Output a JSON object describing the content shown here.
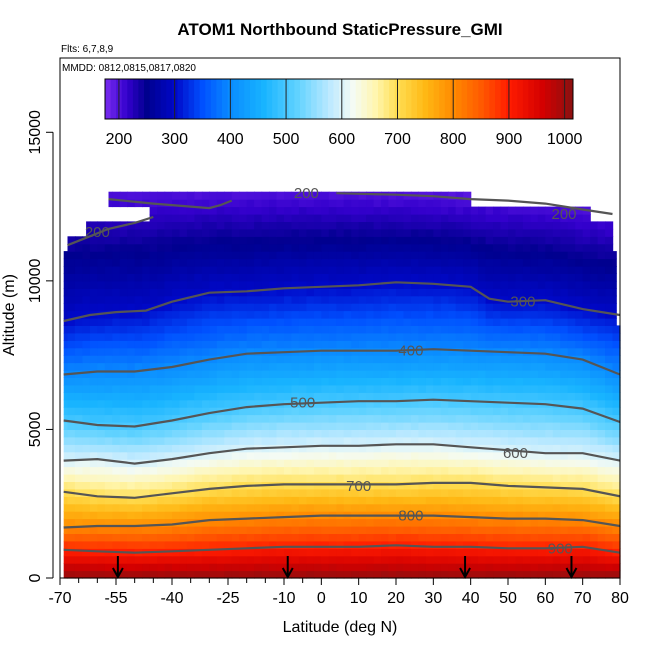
{
  "chart_data": {
    "type": "heatmap",
    "title": "ATOM1 Northbound StaticPressure_GMI",
    "annotations": [
      "Flts: 6,7,8,9",
      "MMDD: 0812,0815,0817,0820"
    ],
    "xlabel": "Latitude (deg N)",
    "ylabel": "Altitude (m)",
    "xlim": [
      -70,
      80
    ],
    "ylim": [
      0,
      17500
    ],
    "x_ticks": [
      -70,
      -55,
      -40,
      -25,
      -10,
      0,
      10,
      20,
      30,
      40,
      50,
      60,
      70,
      80
    ],
    "x_tick_labels": [
      "-70",
      "-55",
      "-40",
      "-25",
      "-10",
      "0",
      "10",
      "20",
      "30",
      "40",
      "50",
      "60",
      "70",
      "80"
    ],
    "x_minor_ticks": [
      -65,
      -60,
      -50,
      -45,
      -35,
      -30,
      -20,
      -15,
      -5
    ],
    "y_ticks": [
      0,
      5000,
      10000,
      15000
    ],
    "y_tick_labels": [
      "0",
      "5000",
      "10000",
      "15000"
    ],
    "colorbar": {
      "min": 175,
      "max": 1015,
      "ticks": [
        200,
        300,
        400,
        500,
        600,
        700,
        800,
        900,
        1000
      ],
      "tick_labels": [
        "200",
        "300",
        "400",
        "500",
        "600",
        "700",
        "800",
        "900",
        "1000"
      ]
    },
    "colormap": [
      {
        "v": 175,
        "color": "#7a2cf0"
      },
      {
        "v": 215,
        "color": "#3300cc"
      },
      {
        "v": 250,
        "color": "#00008e"
      },
      {
        "v": 300,
        "color": "#0008c8"
      },
      {
        "v": 350,
        "color": "#0050ff"
      },
      {
        "v": 400,
        "color": "#0a8cff"
      },
      {
        "v": 460,
        "color": "#18b4ff"
      },
      {
        "v": 520,
        "color": "#60d2ff"
      },
      {
        "v": 580,
        "color": "#bfeaff"
      },
      {
        "v": 620,
        "color": "#f4fbf4"
      },
      {
        "v": 660,
        "color": "#fff6b0"
      },
      {
        "v": 700,
        "color": "#ffde52"
      },
      {
        "v": 750,
        "color": "#ffb814"
      },
      {
        "v": 800,
        "color": "#ff8a00"
      },
      {
        "v": 850,
        "color": "#ff5a00"
      },
      {
        "v": 900,
        "color": "#ff1c00"
      },
      {
        "v": 960,
        "color": "#d40000"
      },
      {
        "v": 1015,
        "color": "#8a1010"
      }
    ],
    "data_coverage": [
      {
        "lat_min": -57,
        "lat_max": 40,
        "alt_min": 12500,
        "alt_max": 13000
      },
      {
        "lat_min": -46,
        "lat_max": 72,
        "alt_min": 12000,
        "alt_max": 12500
      },
      {
        "lat_min": -63,
        "lat_max": 78,
        "alt_min": 11500,
        "alt_max": 12000
      },
      {
        "lat_min": -68,
        "lat_max": 78,
        "alt_min": 11000,
        "alt_max": 11500
      },
      {
        "lat_min": -69,
        "lat_max": 79,
        "alt_min": 8500,
        "alt_max": 11000
      },
      {
        "lat_min": -69,
        "lat_max": 80,
        "alt_min": 0,
        "alt_max": 8500
      }
    ],
    "contours": [
      {
        "level": 200,
        "label": "200",
        "label_at": [
          -4,
          12950
        ],
        "segments": [
          [
            [
              -57,
              12750
            ],
            [
              -45,
              12600
            ],
            [
              -35,
              12500
            ],
            [
              -30,
              12450
            ],
            [
              -27,
              12550
            ],
            [
              -24,
              12700
            ]
          ],
          [
            [
              4,
              12950
            ],
            [
              20,
              12900
            ],
            [
              30,
              12850
            ],
            [
              40,
              12750
            ],
            [
              50,
              12700
            ],
            [
              60,
              12600
            ],
            [
              70,
              12400
            ],
            [
              78,
              12250
            ]
          ],
          [
            [
              -68,
              11200
            ],
            [
              -63,
              11450
            ],
            [
              -57,
              11750
            ],
            [
              -50,
              11950
            ],
            [
              -45,
              12150
            ]
          ]
        ],
        "extra_labels": [
          {
            "text": "200",
            "at": [
              -60,
              11650
            ]
          },
          {
            "text": "200",
            "at": [
              65,
              12250
            ]
          }
        ]
      },
      {
        "level": 300,
        "label": "300",
        "label_at": [
          54,
          9300
        ],
        "segments": [
          [
            [
              -69,
              8650
            ],
            [
              -62,
              8850
            ],
            [
              -55,
              8950
            ],
            [
              -47,
              9000
            ],
            [
              -40,
              9300
            ],
            [
              -35,
              9450
            ],
            [
              -30,
              9600
            ],
            [
              -20,
              9650
            ],
            [
              -10,
              9750
            ],
            [
              0,
              9800
            ],
            [
              10,
              9850
            ],
            [
              20,
              9950
            ],
            [
              30,
              9900
            ],
            [
              40,
              9800
            ],
            [
              45,
              9400
            ],
            [
              50,
              9300
            ],
            [
              60,
              9350
            ],
            [
              70,
              9050
            ],
            [
              80,
              8850
            ]
          ]
        ]
      },
      {
        "level": 400,
        "label": "400",
        "label_at": [
          24,
          7650
        ],
        "segments": [
          [
            [
              -69,
              6850
            ],
            [
              -60,
              6950
            ],
            [
              -50,
              6950
            ],
            [
              -40,
              7100
            ],
            [
              -30,
              7350
            ],
            [
              -20,
              7550
            ],
            [
              -10,
              7600
            ],
            [
              0,
              7650
            ],
            [
              10,
              7650
            ],
            [
              20,
              7650
            ],
            [
              30,
              7700
            ],
            [
              40,
              7650
            ],
            [
              50,
              7600
            ],
            [
              60,
              7550
            ],
            [
              70,
              7350
            ],
            [
              80,
              6850
            ]
          ]
        ]
      },
      {
        "level": 500,
        "label": "500",
        "label_at": [
          -5,
          5900
        ],
        "segments": [
          [
            [
              -69,
              5300
            ],
            [
              -60,
              5150
            ],
            [
              -50,
              5100
            ],
            [
              -40,
              5300
            ],
            [
              -30,
              5550
            ],
            [
              -20,
              5750
            ],
            [
              -10,
              5850
            ],
            [
              0,
              5900
            ],
            [
              10,
              5950
            ],
            [
              20,
              5950
            ],
            [
              30,
              6000
            ],
            [
              40,
              5950
            ],
            [
              50,
              5900
            ],
            [
              60,
              5850
            ],
            [
              70,
              5700
            ],
            [
              80,
              5250
            ]
          ]
        ]
      },
      {
        "level": 600,
        "label": "600",
        "label_at": [
          52,
          4200
        ],
        "segments": [
          [
            [
              -69,
              3950
            ],
            [
              -60,
              4000
            ],
            [
              -50,
              3850
            ],
            [
              -40,
              4000
            ],
            [
              -30,
              4200
            ],
            [
              -20,
              4350
            ],
            [
              -10,
              4400
            ],
            [
              0,
              4450
            ],
            [
              10,
              4450
            ],
            [
              20,
              4500
            ],
            [
              30,
              4500
            ],
            [
              40,
              4400
            ],
            [
              50,
              4300
            ],
            [
              60,
              4200
            ],
            [
              70,
              4200
            ],
            [
              80,
              3950
            ]
          ]
        ]
      },
      {
        "level": 700,
        "label": "700",
        "label_at": [
          10,
          3100
        ],
        "segments": [
          [
            [
              -69,
              2900
            ],
            [
              -60,
              2750
            ],
            [
              -50,
              2700
            ],
            [
              -40,
              2850
            ],
            [
              -30,
              3000
            ],
            [
              -20,
              3100
            ],
            [
              -10,
              3150
            ],
            [
              0,
              3150
            ],
            [
              10,
              3150
            ],
            [
              20,
              3150
            ],
            [
              30,
              3200
            ],
            [
              40,
              3200
            ],
            [
              50,
              3100
            ],
            [
              60,
              3050
            ],
            [
              70,
              3000
            ],
            [
              80,
              2750
            ]
          ]
        ]
      },
      {
        "level": 800,
        "label": "800",
        "label_at": [
          24,
          2100
        ],
        "segments": [
          [
            [
              -69,
              1700
            ],
            [
              -60,
              1750
            ],
            [
              -50,
              1750
            ],
            [
              -40,
              1800
            ],
            [
              -30,
              1950
            ],
            [
              -20,
              2000
            ],
            [
              -10,
              2050
            ],
            [
              0,
              2100
            ],
            [
              10,
              2100
            ],
            [
              20,
              2100
            ],
            [
              30,
              2100
            ],
            [
              40,
              2050
            ],
            [
              50,
              2000
            ],
            [
              60,
              2000
            ],
            [
              70,
              1950
            ],
            [
              80,
              1750
            ]
          ]
        ]
      },
      {
        "level": 900,
        "label": "900",
        "label_at": [
          64,
          1000
        ],
        "segments": [
          [
            [
              -69,
              950
            ],
            [
              -60,
              900
            ],
            [
              -50,
              850
            ],
            [
              -40,
              900
            ],
            [
              -30,
              950
            ],
            [
              -20,
              1000
            ],
            [
              -10,
              1050
            ],
            [
              0,
              1050
            ],
            [
              10,
              1050
            ],
            [
              20,
              1100
            ],
            [
              30,
              1050
            ],
            [
              40,
              1050
            ],
            [
              50,
              1000
            ],
            [
              60,
              1000
            ],
            [
              70,
              1050
            ],
            [
              80,
              850
            ]
          ]
        ]
      }
    ],
    "arrows_lat": [
      -54.5,
      -9,
      38.5,
      67
    ]
  }
}
